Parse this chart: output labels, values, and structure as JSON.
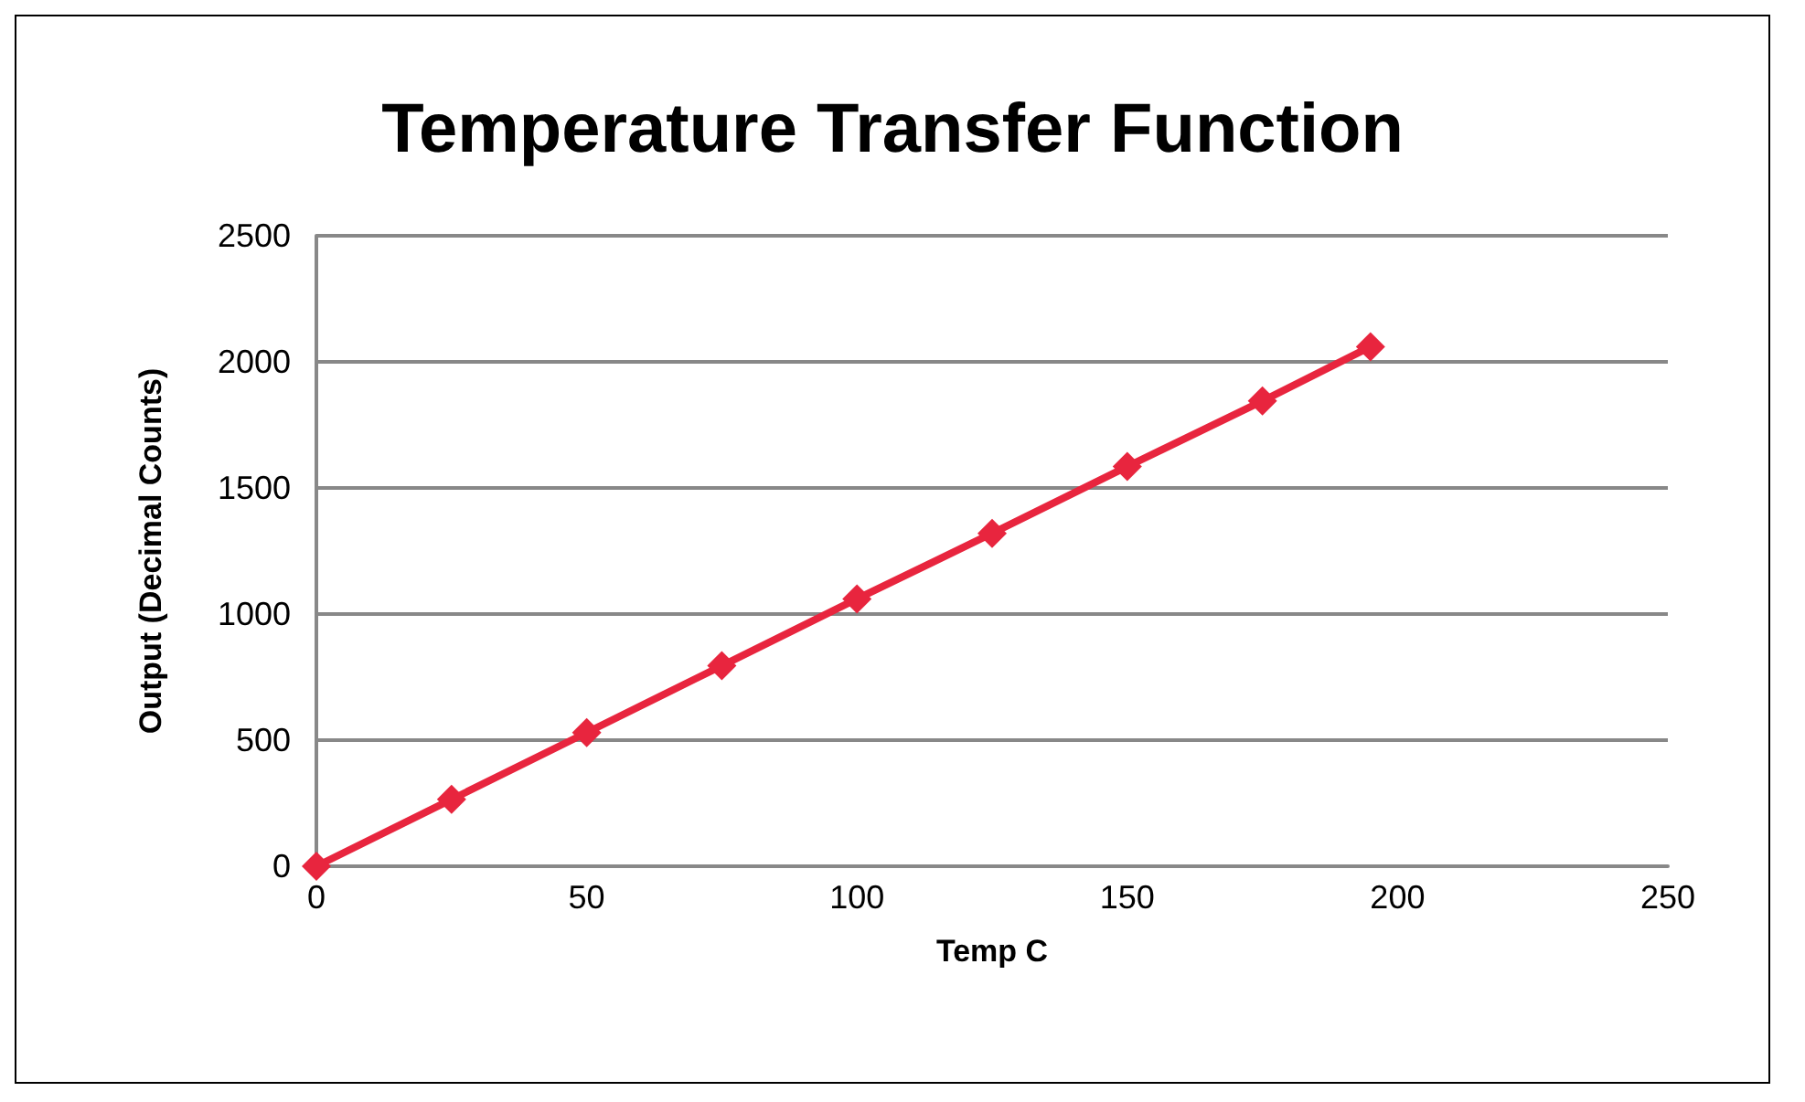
{
  "chart_data": {
    "type": "line",
    "title": "Temperature Transfer Function",
    "xlabel": "Temp C",
    "ylabel": "Output (Decimal Counts)",
    "x": [
      0,
      25,
      50,
      75,
      100,
      125,
      150,
      175,
      195
    ],
    "series": [
      {
        "color": "#e8253e",
        "values": [
          0,
          265,
          530,
          795,
          1060,
          1320,
          1585,
          1845,
          2060
        ]
      }
    ],
    "xlim": [
      0,
      250
    ],
    "xticks": [
      0,
      50,
      100,
      150,
      200,
      250
    ],
    "ylim": [
      0,
      2500
    ],
    "yticks": [
      0,
      500,
      1000,
      1500,
      2000,
      2500
    ],
    "grid": "y",
    "marker": "diamond",
    "line_style": "solid"
  }
}
